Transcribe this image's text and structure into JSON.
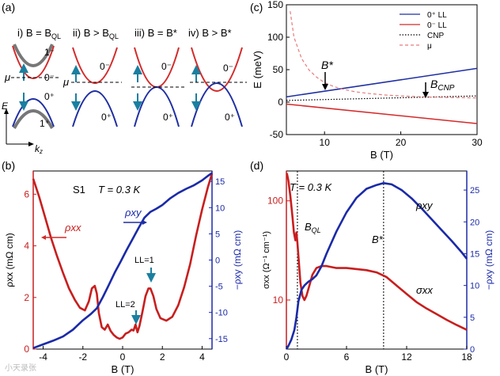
{
  "figure": {
    "panel_a": {
      "label": "(a)",
      "subtitles": [
        "i) B = B",
        "ii) B > B",
        "iii) B = B*",
        "iv) B > B*"
      ],
      "subscripts": [
        "QL",
        "QL"
      ],
      "level_labels": {
        "one_minus": "1⁻",
        "zero_minus": "0⁻",
        "zero_plus": "0⁺",
        "one_plus": "1⁺"
      },
      "mu_label": "μ",
      "e_axis": "E",
      "kz_axis": "k",
      "kz_sub": "z",
      "colors": {
        "red": "#d42a2a",
        "blue": "#1f2fa3",
        "gray": "#666666",
        "teal": "#1a7fa0"
      }
    },
    "panel_b": {
      "label": "(b)",
      "sample": "S1",
      "temp": "T = 0.3 K",
      "ll1": "LL=1",
      "ll2": "LL=2"
    },
    "panel_c": {
      "label": "(c)",
      "bstar": "B*",
      "bcnp": "B",
      "bcnp_sub": "CNP"
    },
    "panel_d": {
      "label": "(d)",
      "temp": "T = 0.3 K",
      "bql": "B",
      "bql_sub": "QL",
      "bstar": "B*"
    },
    "watermark": "小天录张"
  },
  "chart_data": [
    {
      "id": "c",
      "type": "line",
      "xlabel": "B (T)",
      "ylabel": "E (meV)",
      "xlim": [
        5,
        30
      ],
      "ylim": [
        -50,
        150
      ],
      "xticks": [
        10,
        20,
        30
      ],
      "yticks": [
        -50,
        0,
        50,
        100,
        150
      ],
      "legend_position": "top-right",
      "series": [
        {
          "name": "0⁺ LL",
          "color": "#1f2fa3",
          "style": "solid",
          "x": [
            5,
            30
          ],
          "y": [
            8,
            52
          ]
        },
        {
          "name": "0⁻ LL",
          "color": "#d42a2a",
          "style": "solid",
          "x": [
            5,
            30
          ],
          "y": [
            -3,
            -33
          ]
        },
        {
          "name": "CNP",
          "color": "#000000",
          "style": "dotted",
          "x": [
            5,
            30
          ],
          "y": [
            2.5,
            9.5
          ]
        },
        {
          "name": "μ",
          "color": "#e77b7b",
          "style": "dashed",
          "x": [
            5.5,
            6,
            7,
            8,
            9,
            10,
            11,
            12,
            14,
            16,
            18,
            20,
            22,
            24,
            26,
            28,
            30
          ],
          "y": [
            140,
            100,
            67,
            49,
            38,
            30,
            25,
            21,
            16,
            13,
            11,
            9.5,
            8.5,
            7.8,
            7.2,
            6.8,
            6.5
          ]
        }
      ]
    },
    {
      "id": "b",
      "type": "line",
      "xlabel": "B (T)",
      "ylabel_left": "ρxx (mΩ cm)",
      "ylabel_right": "−ρxy (mΩ cm)",
      "xlim": [
        -4.5,
        4.5
      ],
      "ylim_left": [
        0,
        6.9
      ],
      "ylim_right": [
        -17,
        17
      ],
      "xticks": [
        -4,
        -2,
        0,
        2,
        4
      ],
      "yticks_left": [
        0,
        2,
        4,
        6
      ],
      "yticks_right": [
        -15,
        -10,
        -5,
        0,
        5,
        10,
        15
      ],
      "series": [
        {
          "name": "ρxx",
          "color": "#c81e1e",
          "axis": "left",
          "x": [
            -4.5,
            -4.2,
            -3.9,
            -3.6,
            -3.3,
            -3.0,
            -2.7,
            -2.4,
            -2.15,
            -1.9,
            -1.7,
            -1.55,
            -1.4,
            -1.3,
            -1.2,
            -1.05,
            -0.9,
            -0.75,
            -0.6,
            -0.45,
            -0.3,
            -0.15,
            0,
            0.15,
            0.3,
            0.45,
            0.55,
            0.65,
            0.75,
            0.85,
            1.0,
            1.15,
            1.3,
            1.4,
            1.55,
            1.7,
            1.9,
            2.2,
            2.5,
            2.8,
            3.1,
            3.4,
            3.7,
            4.0,
            4.3,
            4.5
          ],
          "y": [
            6.6,
            5.9,
            5.1,
            4.3,
            3.6,
            2.95,
            2.35,
            1.9,
            1.6,
            1.5,
            1.85,
            2.35,
            2.45,
            2.15,
            1.4,
            0.85,
            0.75,
            0.95,
            0.7,
            0.55,
            0.45,
            0.4,
            0.45,
            0.6,
            0.65,
            0.75,
            0.72,
            0.95,
            0.65,
            0.9,
            1.45,
            2.05,
            2.35,
            2.35,
            2.05,
            1.55,
            1.2,
            1.1,
            1.25,
            1.7,
            2.4,
            3.3,
            4.4,
            5.4,
            6.3,
            6.8
          ]
        },
        {
          "name": "ρxy",
          "color": "#1a2aa8",
          "axis": "right",
          "x": [
            -4.5,
            -4.0,
            -3.5,
            -3.0,
            -2.5,
            -2.0,
            -1.6,
            -1.3,
            -1.0,
            -0.7,
            -0.4,
            -0.1,
            0.2,
            0.5,
            0.8,
            1.1,
            1.4,
            1.7,
            2.0,
            2.4,
            2.8,
            3.2,
            3.6,
            4.0,
            4.3,
            4.5
          ],
          "y": [
            -16.8,
            -16.1,
            -15.4,
            -14.6,
            -13.3,
            -11.5,
            -10.3,
            -9.2,
            -7.1,
            -4.8,
            -2.4,
            -0.3,
            1.9,
            4.0,
            6.1,
            8.1,
            9.2,
            9.8,
            10.5,
            11.8,
            12.8,
            13.6,
            14.3,
            15.2,
            16.1,
            16.6
          ]
        }
      ]
    },
    {
      "id": "d",
      "type": "line",
      "xlabel": "B (T)",
      "ylabel_left": "σxx (Ω⁻¹ cm⁻¹)",
      "ylabel_right": "−ρxy (mΩ cm)",
      "xlim": [
        0,
        18
      ],
      "ylim_left_log": [
        3.2,
        200
      ],
      "ylim_right": [
        0,
        28
      ],
      "xticks": [
        0,
        6,
        12,
        18
      ],
      "yticks_left": [
        10,
        100
      ],
      "yticks_right": [
        0,
        5,
        10,
        15,
        20,
        25
      ],
      "vlines": [
        1.1,
        9.7
      ],
      "series": [
        {
          "name": "σxx",
          "color": "#c81e1e",
          "axis": "left",
          "x": [
            0.05,
            0.2,
            0.4,
            0.6,
            0.75,
            0.9,
            1.0,
            1.1,
            1.25,
            1.4,
            1.6,
            1.8,
            2.0,
            2.3,
            2.6,
            3.0,
            3.5,
            4.0,
            5.0,
            6.0,
            7.0,
            8.0,
            9.0,
            10.0,
            11.0,
            12.0,
            13.0,
            14.0,
            15.0,
            16.0,
            17.0,
            18.0
          ],
          "y": [
            190,
            160,
            110,
            70,
            48,
            40,
            48,
            38,
            24,
            15,
            11,
            10,
            11,
            14,
            18,
            21,
            22,
            22,
            21,
            21,
            20.5,
            20,
            19,
            17,
            14,
            11.5,
            9.5,
            8.2,
            7.2,
            6.3,
            5.6,
            5.0
          ]
        },
        {
          "name": "ρxy",
          "color": "#1a2aa8",
          "axis": "right",
          "x": [
            0,
            0.2,
            0.5,
            0.8,
            1.0,
            1.2,
            1.5,
            1.8,
            2.2,
            2.6,
            3.0,
            3.5,
            4.0,
            5.0,
            6.0,
            7.0,
            8.0,
            9.0,
            9.7,
            10.5,
            11.5,
            12.5,
            13.5,
            14.5,
            15.5,
            16.5,
            17.5,
            18.0
          ],
          "y": [
            0,
            0.5,
            1.5,
            3.0,
            5.0,
            7.5,
            9.3,
            10.0,
            10.6,
            11.0,
            11.6,
            13.0,
            15.0,
            18.5,
            21.5,
            23.8,
            25.2,
            25.8,
            26.1,
            25.9,
            25.0,
            23.7,
            22.1,
            20.4,
            18.7,
            17.0,
            15.2,
            14.2
          ]
        }
      ]
    }
  ]
}
